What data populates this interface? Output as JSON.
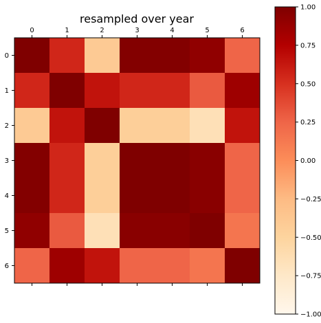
{
  "chart_data": {
    "type": "heatmap",
    "title": "resampled over year",
    "x_categories": [
      "0",
      "1",
      "2",
      "3",
      "4",
      "5",
      "6"
    ],
    "y_categories": [
      "0",
      "1",
      "2",
      "3",
      "4",
      "5",
      "6"
    ],
    "values": [
      [
        1.0,
        0.55,
        -0.4,
        0.98,
        0.98,
        0.92,
        0.25
      ],
      [
        0.55,
        1.0,
        0.65,
        0.55,
        0.55,
        0.3,
        0.85
      ],
      [
        -0.4,
        0.65,
        1.0,
        -0.45,
        -0.45,
        -0.65,
        0.65
      ],
      [
        0.98,
        0.55,
        -0.45,
        1.0,
        1.0,
        0.95,
        0.25
      ],
      [
        0.98,
        0.55,
        -0.45,
        1.0,
        1.0,
        0.95,
        0.25
      ],
      [
        0.92,
        0.3,
        -0.65,
        0.95,
        0.95,
        1.0,
        0.15
      ],
      [
        0.25,
        0.85,
        0.65,
        0.25,
        0.25,
        0.15,
        1.0
      ]
    ],
    "colormap": "OrRd",
    "colormap_stops": [
      "#fff7ec",
      "#fee8c8",
      "#fdd49e",
      "#fdbb84",
      "#fc8d59",
      "#ef6548",
      "#d7301f",
      "#b30000",
      "#7f0000"
    ],
    "colorbar": {
      "range": [
        -1.0,
        1.0
      ],
      "tick_labels": [
        "1.00",
        "0.75",
        "0.50",
        "0.25",
        "0.00",
        "−0.25",
        "−0.50",
        "−0.75",
        "−1.00"
      ],
      "tick_values": [
        1.0,
        0.75,
        0.5,
        0.25,
        0.0,
        -0.25,
        -0.5,
        -0.75,
        -1.0
      ]
    },
    "x_tick_position": "top",
    "grid": false
  }
}
